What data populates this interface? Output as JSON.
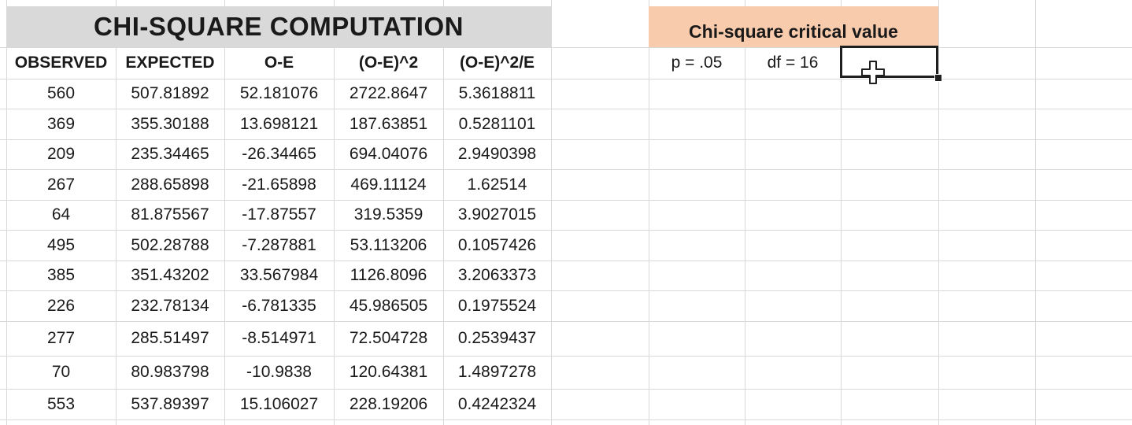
{
  "title": "CHI-SQUARE COMPUTATION",
  "headers": [
    "OBSERVED",
    "EXPECTED",
    "O-E",
    "(O-E)^2",
    "(O-E)^2/E"
  ],
  "rows": [
    [
      "560",
      "507.81892",
      "52.181076",
      "2722.8647",
      "5.3618811"
    ],
    [
      "369",
      "355.30188",
      "13.698121",
      "187.63851",
      "0.5281101"
    ],
    [
      "209",
      "235.34465",
      "-26.34465",
      "694.04076",
      "2.9490398"
    ],
    [
      "267",
      "288.65898",
      "-21.65898",
      "469.11124",
      "1.62514"
    ],
    [
      "64",
      "81.875567",
      "-17.87557",
      "319.5359",
      "3.9027015"
    ],
    [
      "495",
      "502.28788",
      "-7.287881",
      "53.113206",
      "0.1057426"
    ],
    [
      "385",
      "351.43202",
      "33.567984",
      "1126.8096",
      "3.2063373"
    ],
    [
      "226",
      "232.78134",
      "-6.781335",
      "45.986505",
      "0.1975524"
    ],
    [
      "277",
      "285.51497",
      "-8.514971",
      "72.504728",
      "0.2539437"
    ],
    [
      "70",
      "80.983798",
      "-10.9838",
      "120.64381",
      "1.4897278"
    ],
    [
      "553",
      "537.89397",
      "15.106027",
      "228.19206",
      "0.4242324"
    ]
  ],
  "critical": {
    "title": "Chi-square critical value",
    "p_label": "p = .05",
    "df_label": "df = 16",
    "value": ""
  },
  "colors": {
    "title_bg": "#d9d9d9",
    "critical_bg": "#f8cbad",
    "gridline": "#d8d8d8"
  },
  "icons": {
    "cursor": "excel-cross-cursor-icon"
  }
}
